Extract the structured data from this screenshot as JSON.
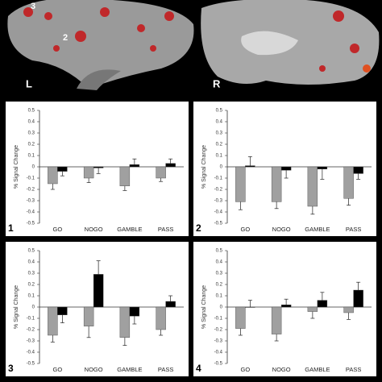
{
  "brain_labels": [
    "3",
    "2",
    "L",
    "R"
  ],
  "chart_data": [
    {
      "type": "bar",
      "panel_label": "1",
      "ylabel": "% Signal Change",
      "categories": [
        "GO",
        "NOGO",
        "GAMBLE",
        "PASS"
      ],
      "series": [
        {
          "color": "#a0a0a0",
          "values": [
            -0.15,
            -0.1,
            -0.17,
            -0.1
          ],
          "errors": [
            0.05,
            0.04,
            0.04,
            0.03
          ]
        },
        {
          "color": "#000000",
          "values": [
            -0.04,
            -0.01,
            0.02,
            0.03
          ],
          "errors": [
            0.04,
            0.05,
            0.05,
            0.04
          ]
        }
      ],
      "ylim": [
        -0.5,
        0.5
      ],
      "yticks": [
        0.5,
        0.4,
        0.3,
        0.2,
        0.1,
        0,
        -0.1,
        -0.2,
        -0.3,
        -0.4,
        -0.5
      ]
    },
    {
      "type": "bar",
      "panel_label": "2",
      "ylabel": "% Signal Change",
      "categories": [
        "GO",
        "NOGO",
        "GAMBLE",
        "PASS"
      ],
      "series": [
        {
          "color": "#a0a0a0",
          "values": [
            -0.31,
            -0.31,
            -0.35,
            -0.28
          ],
          "errors": [
            0.07,
            0.06,
            0.07,
            0.06
          ]
        },
        {
          "color": "#000000",
          "values": [
            0.01,
            -0.03,
            -0.02,
            -0.06
          ],
          "errors": [
            0.08,
            0.07,
            0.09,
            0.05
          ]
        }
      ],
      "ylim": [
        -0.5,
        0.5
      ],
      "yticks": [
        0.5,
        0.4,
        0.3,
        0.2,
        0.1,
        0,
        -0.1,
        -0.2,
        -0.3,
        -0.4,
        -0.5
      ]
    },
    {
      "type": "bar",
      "panel_label": "3",
      "ylabel": "% Signal Change",
      "categories": [
        "GO",
        "NOGO",
        "GAMBLE",
        "PASS"
      ],
      "series": [
        {
          "color": "#a0a0a0",
          "values": [
            -0.25,
            -0.17,
            -0.27,
            -0.2
          ],
          "errors": [
            0.06,
            0.1,
            0.07,
            0.05
          ]
        },
        {
          "color": "#000000",
          "values": [
            -0.07,
            0.29,
            -0.08,
            0.05
          ],
          "errors": [
            0.07,
            0.12,
            0.07,
            0.05
          ]
        }
      ],
      "ylim": [
        -0.5,
        0.5
      ],
      "yticks": [
        0.5,
        0.4,
        0.3,
        0.2,
        0.1,
        0,
        -0.1,
        -0.2,
        -0.3,
        -0.4,
        -0.5
      ]
    },
    {
      "type": "bar",
      "panel_label": "4",
      "ylabel": "% Signal Change",
      "categories": [
        "GO",
        "NOGO",
        "GAMBLE",
        "PASS"
      ],
      "series": [
        {
          "color": "#a0a0a0",
          "values": [
            -0.19,
            -0.24,
            -0.04,
            -0.05
          ],
          "errors": [
            0.06,
            0.06,
            0.06,
            0.06
          ]
        },
        {
          "color": "#000000",
          "values": [
            0,
            0.02,
            0.06,
            0.15
          ],
          "errors": [
            0.06,
            0.05,
            0.07,
            0.07
          ]
        }
      ],
      "ylim": [
        -0.5,
        0.5
      ],
      "yticks": [
        0.5,
        0.4,
        0.3,
        0.2,
        0.1,
        0,
        -0.1,
        -0.2,
        -0.3,
        -0.4,
        -0.5
      ]
    }
  ]
}
